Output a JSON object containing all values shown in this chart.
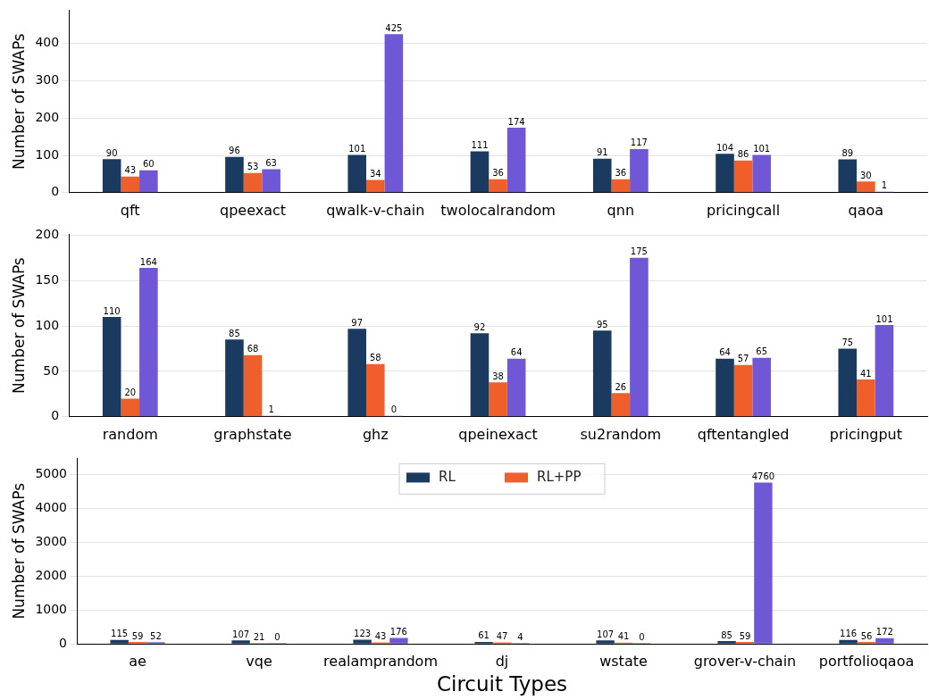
{
  "chart_data": [
    {
      "type": "bar",
      "ylabel": "Number of SWAPs",
      "categories": [
        "qft",
        "qpeexact",
        "qwalk-v-chain",
        "twolocalrandom",
        "qnn",
        "pricingcall",
        "qaoa"
      ],
      "series": [
        {
          "color": "#1b3a5f",
          "values": [
            90,
            96,
            101,
            111,
            91,
            104,
            89
          ]
        },
        {
          "color": "#ee5f2c",
          "values": [
            43,
            53,
            34,
            36,
            36,
            86,
            30
          ]
        },
        {
          "color": "#6f57d6",
          "values": [
            60,
            63,
            425,
            174,
            117,
            101,
            1
          ]
        }
      ],
      "ylim": [
        0,
        489
      ],
      "yticks": [
        0,
        100,
        200,
        300,
        400
      ],
      "grid": "y",
      "data_labels": true
    },
    {
      "type": "bar",
      "ylabel": "Number of SWAPs",
      "categories": [
        "random",
        "graphstate",
        "ghz",
        "qpeinexact",
        "su2random",
        "qftentangled",
        "pricingput"
      ],
      "series": [
        {
          "color": "#1b3a5f",
          "values": [
            110,
            85,
            97,
            92,
            95,
            64,
            75
          ]
        },
        {
          "color": "#ee5f2c",
          "values": [
            20,
            68,
            58,
            38,
            26,
            57,
            41
          ]
        },
        {
          "color": "#6f57d6",
          "values": [
            164,
            1,
            0,
            64,
            175,
            65,
            101
          ]
        }
      ],
      "ylim": [
        0,
        201
      ],
      "yticks": [
        0,
        50,
        100,
        150,
        200
      ],
      "grid": "y",
      "data_labels": true
    },
    {
      "type": "bar",
      "xlabel": "Circuit Types",
      "ylabel": "Number of SWAPs",
      "categories": [
        "ae",
        "vqe",
        "realamprandom",
        "dj",
        "wstate",
        "grover-v-chain",
        "portfolioqaoa"
      ],
      "series": [
        {
          "name": "RL",
          "color": "#1b3a5f",
          "values": [
            115,
            107,
            123,
            61,
            107,
            85,
            116
          ]
        },
        {
          "name": "RL+PP",
          "color": "#ee5f2c",
          "values": [
            59,
            21,
            43,
            47,
            41,
            59,
            56
          ]
        },
        {
          "color": "#6f57d6",
          "values": [
            52,
            0,
            176,
            4,
            0,
            4760,
            172
          ]
        }
      ],
      "ylim": [
        0,
        5474
      ],
      "yticks": [
        0,
        1000,
        2000,
        3000,
        4000,
        5000
      ],
      "grid": "y",
      "data_labels": true,
      "legend": "top"
    }
  ]
}
